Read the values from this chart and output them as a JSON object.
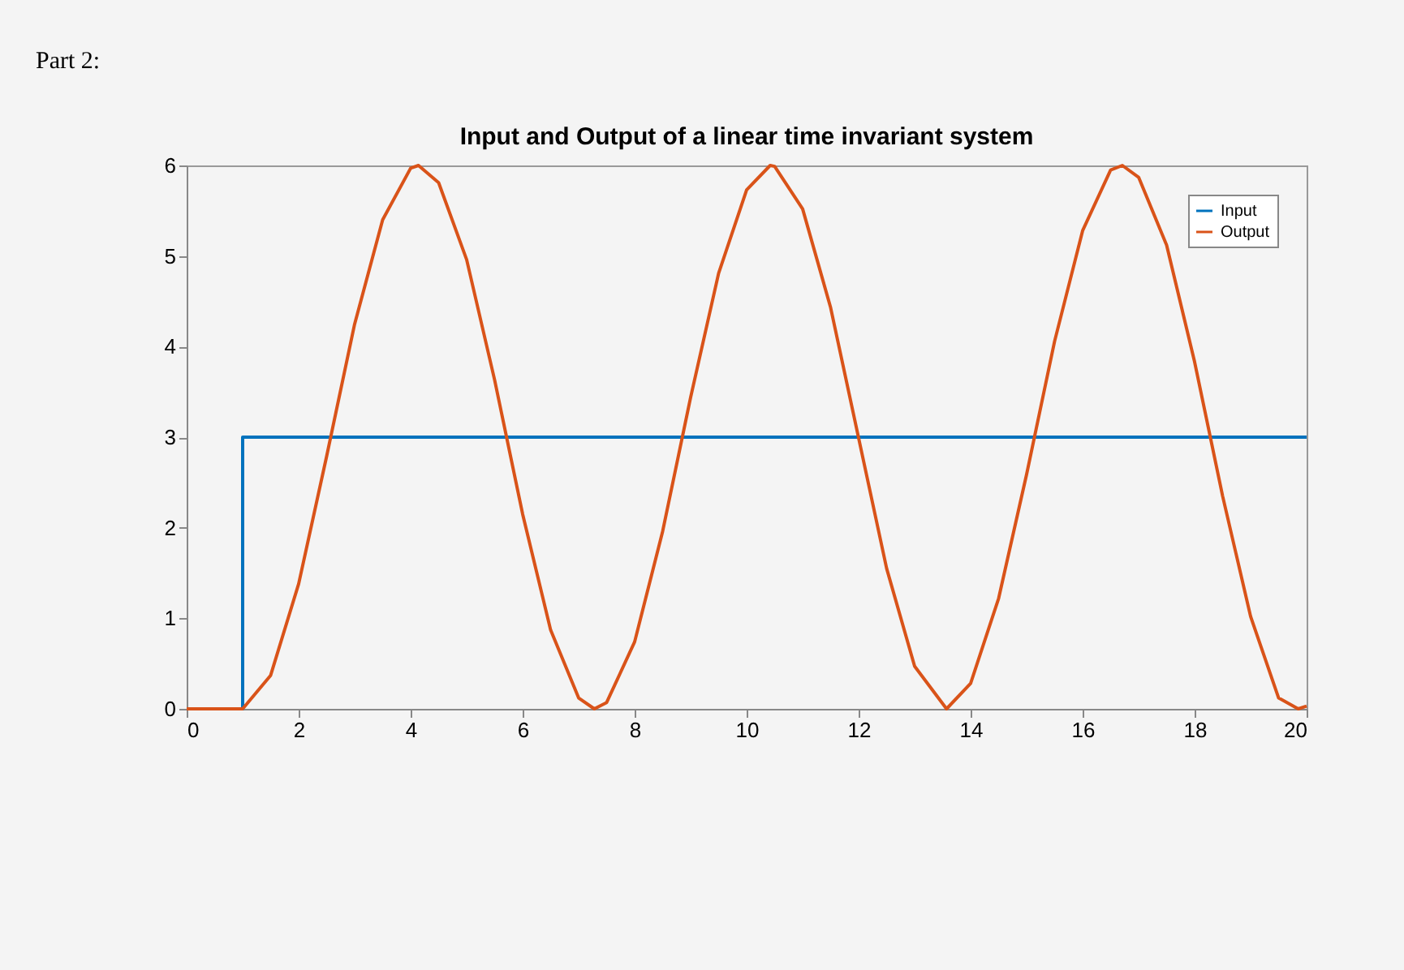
{
  "chart_data": {
    "type": "line",
    "title": "Input and Output of a linear time invariant system",
    "annotations": [
      "Part 2:"
    ],
    "xlim": [
      0,
      20
    ],
    "xticks": [
      0,
      2,
      4,
      6,
      8,
      10,
      12,
      14,
      16,
      18,
      20
    ],
    "ylim": [
      0,
      6
    ],
    "yticks": [
      0,
      1,
      2,
      3,
      4,
      5,
      6
    ],
    "legend": "top right",
    "series": [
      {
        "name": "Input",
        "color": "#0072bd",
        "x": [
          0,
          1,
          1,
          20
        ],
        "values": [
          0,
          0,
          3,
          3
        ]
      },
      {
        "name": "Output",
        "color": "#d95319",
        "x": [
          0,
          1,
          1.5,
          2,
          2.5,
          3,
          3.5,
          4,
          4.14,
          4.5,
          5,
          5.5,
          6,
          6.5,
          7,
          7.28,
          7.5,
          8,
          8.5,
          9,
          9.5,
          10,
          10.42,
          10.5,
          11,
          11.5,
          12,
          12.5,
          13,
          13.57,
          14,
          14.5,
          15,
          15.5,
          16,
          16.5,
          16.71,
          17,
          17.5,
          18,
          18.5,
          19,
          19.5,
          19.85,
          20
        ],
        "values": [
          0,
          0,
          0.37,
          1.38,
          2.79,
          4.25,
          5.4,
          5.97,
          6,
          5.81,
          4.96,
          3.63,
          2.15,
          0.87,
          0.12,
          0,
          0.07,
          0.74,
          1.96,
          3.44,
          4.81,
          5.73,
          6,
          5.99,
          5.52,
          4.43,
          2.99,
          1.55,
          0.47,
          0,
          0.28,
          1.22,
          2.59,
          4.06,
          5.28,
          5.95,
          6,
          5.87,
          5.12,
          3.83,
          2.35,
          1.02,
          0.12,
          0,
          0.03
        ]
      }
    ]
  }
}
